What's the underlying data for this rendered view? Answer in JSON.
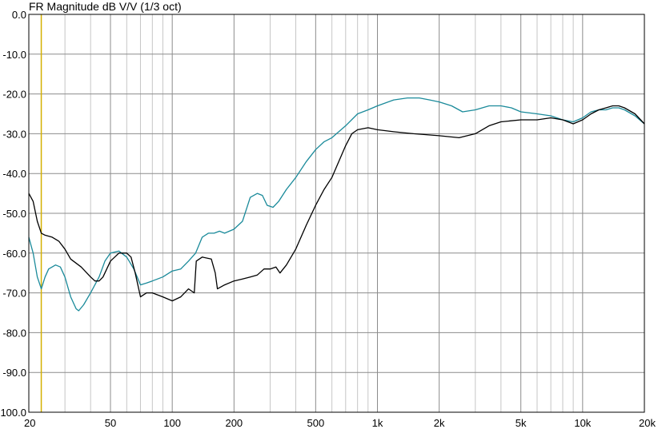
{
  "chart_data": {
    "type": "line",
    "title": "FR Magnitude dB V/V (1/3 oct)",
    "xscale": "log",
    "xlim": [
      20,
      20000
    ],
    "ylim": [
      -100,
      0
    ],
    "grid": true,
    "x_ticks": [
      {
        "value": 20,
        "label": "20"
      },
      {
        "value": 50,
        "label": "50"
      },
      {
        "value": 100,
        "label": "100"
      },
      {
        "value": 200,
        "label": "200"
      },
      {
        "value": 500,
        "label": "500"
      },
      {
        "value": 1000,
        "label": "1k"
      },
      {
        "value": 2000,
        "label": "2k"
      },
      {
        "value": 5000,
        "label": "5k"
      },
      {
        "value": 10000,
        "label": "10k"
      },
      {
        "value": 20000,
        "label": "20k"
      }
    ],
    "y_ticks": [
      {
        "value": 0,
        "label": "0.0"
      },
      {
        "value": -10,
        "label": "-10.0"
      },
      {
        "value": -20,
        "label": "-20.0"
      },
      {
        "value": -30,
        "label": "-30.0"
      },
      {
        "value": -40,
        "label": "-40.0"
      },
      {
        "value": -50,
        "label": "-50.0"
      },
      {
        "value": -60,
        "label": "-60.0"
      },
      {
        "value": -70,
        "label": "-70.0"
      },
      {
        "value": -80,
        "label": "-80.0"
      },
      {
        "value": -90,
        "label": "-90.0"
      },
      {
        "value": -100,
        "label": "-100.0"
      }
    ],
    "marker": {
      "x": 23,
      "color": "#d4b000"
    },
    "series": [
      {
        "color": "#1a8a9a",
        "points": [
          [
            20,
            -56
          ],
          [
            21,
            -60
          ],
          [
            22,
            -66
          ],
          [
            23,
            -69
          ],
          [
            24,
            -66
          ],
          [
            25,
            -64
          ],
          [
            27,
            -63
          ],
          [
            28.5,
            -63.5
          ],
          [
            30,
            -66
          ],
          [
            32,
            -71
          ],
          [
            34,
            -74
          ],
          [
            35,
            -74.5
          ],
          [
            37,
            -73
          ],
          [
            40,
            -70
          ],
          [
            44,
            -66
          ],
          [
            47,
            -62
          ],
          [
            50,
            -60
          ],
          [
            55,
            -59.5
          ],
          [
            60,
            -61
          ],
          [
            65,
            -64
          ],
          [
            70,
            -68
          ],
          [
            75,
            -67.5
          ],
          [
            80,
            -67
          ],
          [
            90,
            -66
          ],
          [
            100,
            -64.5
          ],
          [
            110,
            -64
          ],
          [
            120,
            -62
          ],
          [
            130,
            -60
          ],
          [
            140,
            -56
          ],
          [
            150,
            -55
          ],
          [
            160,
            -55
          ],
          [
            170,
            -54.5
          ],
          [
            180,
            -55
          ],
          [
            200,
            -54
          ],
          [
            220,
            -52
          ],
          [
            240,
            -46
          ],
          [
            260,
            -45
          ],
          [
            275,
            -45.5
          ],
          [
            290,
            -48
          ],
          [
            310,
            -48.5
          ],
          [
            330,
            -47
          ],
          [
            360,
            -44
          ],
          [
            400,
            -41
          ],
          [
            450,
            -37
          ],
          [
            500,
            -34
          ],
          [
            550,
            -32
          ],
          [
            600,
            -31
          ],
          [
            700,
            -28
          ],
          [
            800,
            -25
          ],
          [
            900,
            -24
          ],
          [
            1000,
            -23
          ],
          [
            1200,
            -21.5
          ],
          [
            1400,
            -21
          ],
          [
            1600,
            -21
          ],
          [
            1800,
            -21.5
          ],
          [
            2000,
            -22
          ],
          [
            2300,
            -23
          ],
          [
            2600,
            -24.5
          ],
          [
            3000,
            -24
          ],
          [
            3500,
            -23
          ],
          [
            4000,
            -23
          ],
          [
            4500,
            -23.5
          ],
          [
            5000,
            -24.5
          ],
          [
            6000,
            -25
          ],
          [
            7000,
            -25.5
          ],
          [
            8000,
            -26.5
          ],
          [
            9000,
            -27
          ],
          [
            10000,
            -26
          ],
          [
            11000,
            -24.5
          ],
          [
            12000,
            -24
          ],
          [
            13000,
            -24
          ],
          [
            14000,
            -23.5
          ],
          [
            15000,
            -23.5
          ],
          [
            16000,
            -24
          ],
          [
            18000,
            -25.5
          ],
          [
            20000,
            -27.5
          ]
        ]
      },
      {
        "color": "#000000",
        "points": [
          [
            20,
            -45
          ],
          [
            21,
            -47
          ],
          [
            22,
            -52
          ],
          [
            23,
            -55
          ],
          [
            24,
            -55.5
          ],
          [
            26,
            -56
          ],
          [
            28,
            -57
          ],
          [
            30,
            -59
          ],
          [
            32,
            -61.5
          ],
          [
            36,
            -63.5
          ],
          [
            40,
            -66
          ],
          [
            42,
            -67
          ],
          [
            44,
            -67
          ],
          [
            46,
            -66
          ],
          [
            50,
            -62
          ],
          [
            55,
            -60
          ],
          [
            60,
            -60
          ],
          [
            63,
            -61
          ],
          [
            66,
            -65
          ],
          [
            70,
            -71
          ],
          [
            75,
            -70
          ],
          [
            80,
            -70
          ],
          [
            90,
            -71
          ],
          [
            100,
            -72
          ],
          [
            110,
            -71
          ],
          [
            120,
            -69
          ],
          [
            128,
            -70
          ],
          [
            131,
            -62
          ],
          [
            140,
            -61
          ],
          [
            155,
            -61.5
          ],
          [
            162,
            -65
          ],
          [
            166,
            -69
          ],
          [
            180,
            -68
          ],
          [
            200,
            -67
          ],
          [
            220,
            -66.5
          ],
          [
            240,
            -66
          ],
          [
            260,
            -65.5
          ],
          [
            280,
            -64
          ],
          [
            300,
            -64
          ],
          [
            320,
            -63.5
          ],
          [
            335,
            -65
          ],
          [
            360,
            -63
          ],
          [
            400,
            -59
          ],
          [
            450,
            -53
          ],
          [
            500,
            -48
          ],
          [
            550,
            -44
          ],
          [
            600,
            -41
          ],
          [
            700,
            -33
          ],
          [
            750,
            -30
          ],
          [
            800,
            -29
          ],
          [
            900,
            -28.5
          ],
          [
            1000,
            -29
          ],
          [
            1200,
            -29.5
          ],
          [
            1500,
            -30
          ],
          [
            2000,
            -30.5
          ],
          [
            2500,
            -31
          ],
          [
            3000,
            -30
          ],
          [
            3500,
            -28
          ],
          [
            4000,
            -27
          ],
          [
            5000,
            -26.5
          ],
          [
            6000,
            -26.5
          ],
          [
            7000,
            -26
          ],
          [
            8000,
            -26.5
          ],
          [
            9000,
            -27.5
          ],
          [
            10000,
            -26.5
          ],
          [
            11000,
            -25
          ],
          [
            12000,
            -24
          ],
          [
            13000,
            -23.5
          ],
          [
            14000,
            -23
          ],
          [
            15000,
            -23
          ],
          [
            16000,
            -23.5
          ],
          [
            18000,
            -25
          ],
          [
            20000,
            -27.5
          ]
        ]
      }
    ]
  }
}
